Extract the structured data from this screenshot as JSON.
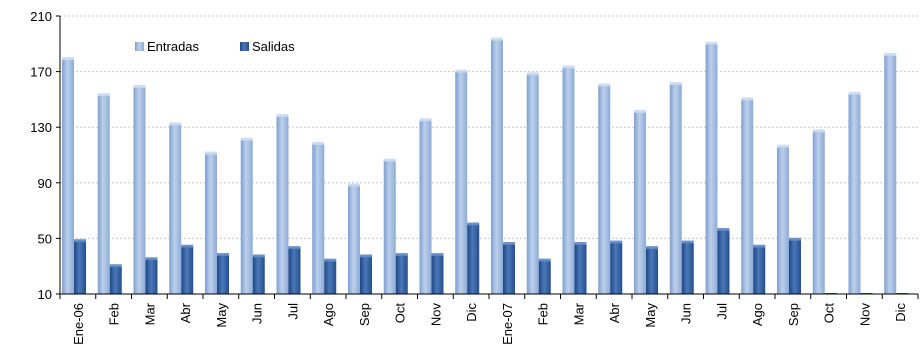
{
  "chart_data": {
    "type": "bar",
    "title": "",
    "xlabel": "",
    "ylabel": "",
    "ylim": [
      10,
      210
    ],
    "yticks": [
      10,
      50,
      90,
      130,
      170,
      210
    ],
    "grid": true,
    "legend_position": "top-left",
    "categories": [
      "Ene-06",
      "Feb",
      "Mar",
      "Abr",
      "May",
      "Jun",
      "Jul",
      "Ago",
      "Sep",
      "Oct",
      "Nov",
      "Dic",
      "Ene-07",
      "Feb",
      "Mar",
      "Abr",
      "May",
      "Jun",
      "Jul",
      "Ago",
      "Sep",
      "Oct",
      "Nov",
      "Dic"
    ],
    "series": [
      {
        "name": "Entradas",
        "color": "#9db8de",
        "values": [
          179,
          153,
          159,
          132,
          111,
          121,
          138,
          118,
          88,
          106,
          135,
          170,
          193,
          168,
          173,
          160,
          141,
          161,
          190,
          150,
          116,
          127,
          154,
          182
        ]
      },
      {
        "name": "Salidas",
        "color": "#2f5e9e",
        "values": [
          48,
          30,
          35,
          44,
          38,
          37,
          43,
          34,
          37,
          38,
          38,
          60,
          46,
          34,
          46,
          47,
          43,
          47,
          56,
          44,
          49,
          null,
          null,
          null
        ]
      }
    ]
  }
}
